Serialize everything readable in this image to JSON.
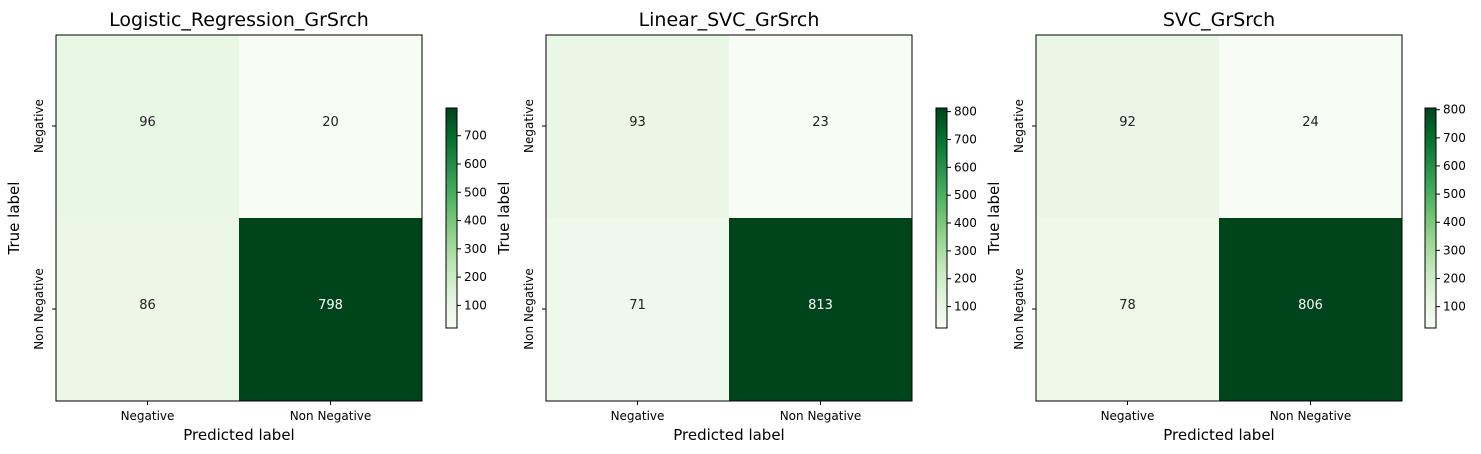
{
  "figure": {
    "colormap": "Greens",
    "colors": {
      "low": "#f7fcf5",
      "high": "#00441b",
      "text_dark": "#222222",
      "text_light": "#ffffff",
      "axis": "#000000"
    }
  },
  "chart_data": [
    {
      "type": "heatmap",
      "title": "Logistic_Regression_GrSrch",
      "xlabel": "Predicted label",
      "ylabel": "True label",
      "x_categories": [
        "Negative",
        "Non Negative"
      ],
      "y_categories": [
        "Negative",
        "Non Negative"
      ],
      "values": [
        [
          96,
          20
        ],
        [
          86,
          798
        ]
      ],
      "colorbar": {
        "min": 20,
        "max": 798,
        "ticks": [
          100,
          200,
          300,
          400,
          500,
          600,
          700
        ]
      },
      "grid": false
    },
    {
      "type": "heatmap",
      "title": "Linear_SVC_GrSrch",
      "xlabel": "Predicted label",
      "ylabel": "True label",
      "x_categories": [
        "Negative",
        "Non Negative"
      ],
      "y_categories": [
        "Negative",
        "Non Negative"
      ],
      "values": [
        [
          93,
          23
        ],
        [
          71,
          813
        ]
      ],
      "colorbar": {
        "min": 23,
        "max": 813,
        "ticks": [
          100,
          200,
          300,
          400,
          500,
          600,
          700,
          800
        ]
      },
      "grid": false
    },
    {
      "type": "heatmap",
      "title": "SVC_GrSrch",
      "xlabel": "Predicted label",
      "ylabel": "True label",
      "x_categories": [
        "Negative",
        "Non Negative"
      ],
      "y_categories": [
        "Negative",
        "Non Negative"
      ],
      "values": [
        [
          92,
          24
        ],
        [
          78,
          806
        ]
      ],
      "colorbar": {
        "min": 24,
        "max": 806,
        "ticks": [
          100,
          200,
          300,
          400,
          500,
          600,
          700,
          800
        ]
      },
      "grid": false
    }
  ]
}
